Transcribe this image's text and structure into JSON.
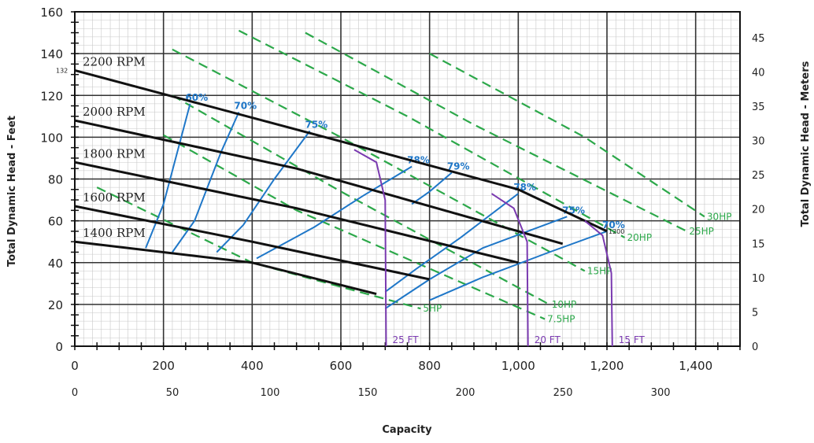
{
  "chart_data": {
    "type": "line",
    "title": "",
    "xlabel": "Capacity",
    "ylabel_left": "Total Dynamic Head - Feet",
    "ylabel_right": "Total Dynamic Head - Meters",
    "x_range": [
      0,
      1500
    ],
    "y_range": [
      0,
      160
    ],
    "x_ticks_top": [
      "0",
      "200",
      "400",
      "600",
      "800",
      "1,000",
      "1,200",
      "1,400"
    ],
    "x_ticks_top_values": [
      0,
      200,
      400,
      600,
      800,
      1000,
      1200,
      1400
    ],
    "x_ticks_bottom": [
      "0",
      "50",
      "100",
      "150",
      "200",
      "250",
      "300"
    ],
    "x_ticks_bottom_values": [
      0,
      50,
      100,
      150,
      200,
      250,
      300
    ],
    "y_ticks_left": [
      "0",
      "20",
      "40",
      "60",
      "80",
      "100",
      "120",
      "140",
      "160"
    ],
    "y_ticks_left_values": [
      0,
      20,
      40,
      60,
      80,
      100,
      120,
      140,
      160
    ],
    "y_ticks_right": [
      "0",
      "5",
      "10",
      "15",
      "20",
      "25",
      "30",
      "35",
      "40",
      "45"
    ],
    "y_ticks_right_values": [
      0,
      5,
      10,
      15,
      20,
      25,
      30,
      35,
      40,
      45
    ],
    "marker_labels": [
      {
        "text": "132",
        "x": 0,
        "y": 132
      },
      {
        "text": "1200",
        "x": 1200,
        "y": 55
      }
    ],
    "rpm_curves": [
      {
        "name": "2200 RPM",
        "points": [
          [
            0,
            132
          ],
          [
            600,
            98
          ],
          [
            1000,
            75
          ],
          [
            1200,
            55
          ]
        ]
      },
      {
        "name": "2000 RPM",
        "points": [
          [
            0,
            108
          ],
          [
            500,
            85
          ],
          [
            1100,
            49
          ]
        ]
      },
      {
        "name": "1800 RPM",
        "points": [
          [
            0,
            88
          ],
          [
            500,
            66
          ],
          [
            1000,
            40
          ]
        ]
      },
      {
        "name": "1600 RPM",
        "points": [
          [
            0,
            67
          ],
          [
            400,
            50
          ],
          [
            800,
            32
          ]
        ]
      },
      {
        "name": "1400 RPM",
        "points": [
          [
            0,
            50
          ],
          [
            400,
            40
          ],
          [
            680,
            25
          ]
        ]
      }
    ],
    "efficiency_curves": [
      {
        "name": "60%",
        "points": [
          [
            160,
            47
          ],
          [
            200,
            68
          ],
          [
            260,
            116
          ]
        ]
      },
      {
        "name": "70%",
        "points": [
          [
            220,
            45
          ],
          [
            270,
            60
          ],
          [
            330,
            93
          ],
          [
            370,
            112
          ]
        ]
      },
      {
        "name": "75%",
        "points": [
          [
            320,
            45
          ],
          [
            380,
            58
          ],
          [
            450,
            80
          ],
          [
            530,
            103
          ]
        ]
      },
      {
        "name": "78%",
        "points": [
          [
            410,
            42
          ],
          [
            540,
            57
          ],
          [
            650,
            72
          ],
          [
            760,
            86
          ]
        ]
      },
      {
        "name": "79%",
        "points": [
          [
            760,
            68
          ],
          [
            800,
            74
          ],
          [
            850,
            83
          ]
        ]
      },
      {
        "name": "78%",
        "points": [
          [
            700,
            26
          ],
          [
            770,
            37
          ],
          [
            870,
            52
          ],
          [
            1000,
            73
          ]
        ]
      },
      {
        "name": "75%",
        "points": [
          [
            700,
            18
          ],
          [
            800,
            32
          ],
          [
            920,
            47
          ],
          [
            1110,
            62
          ]
        ]
      },
      {
        "name": "70%",
        "points": [
          [
            800,
            22
          ],
          [
            920,
            33
          ],
          [
            1070,
            45
          ],
          [
            1200,
            55
          ]
        ]
      }
    ],
    "hp_curves": [
      {
        "name": "5HP",
        "points": [
          [
            50,
            76
          ],
          [
            400,
            40
          ],
          [
            780,
            18
          ]
        ]
      },
      {
        "name": "7.5HP",
        "points": [
          [
            200,
            101
          ],
          [
            500,
            65
          ],
          [
            1060,
            13
          ]
        ]
      },
      {
        "name": "10HP",
        "points": [
          [
            220,
            120
          ],
          [
            600,
            74
          ],
          [
            1070,
            20
          ]
        ]
      },
      {
        "name": "15HP",
        "points": [
          [
            220,
            142
          ],
          [
            600,
            100
          ],
          [
            1150,
            36
          ]
        ]
      },
      {
        "name": "20HP",
        "points": [
          [
            370,
            151
          ],
          [
            750,
            110
          ],
          [
            1240,
            52
          ]
        ]
      },
      {
        "name": "25HP",
        "points": [
          [
            520,
            150
          ],
          [
            900,
            106
          ],
          [
            1380,
            55
          ]
        ]
      },
      {
        "name": "30HP",
        "points": [
          [
            800,
            140
          ],
          [
            1150,
            100
          ],
          [
            1420,
            62
          ]
        ]
      }
    ],
    "npsh_curves": [
      {
        "name": "25 FT",
        "points": [
          [
            630,
            94
          ],
          [
            680,
            88
          ],
          [
            700,
            70
          ],
          [
            702,
            0
          ]
        ]
      },
      {
        "name": "20 FT",
        "points": [
          [
            940,
            73
          ],
          [
            990,
            66
          ],
          [
            1020,
            50
          ],
          [
            1022,
            0
          ]
        ]
      },
      {
        "name": "15 FT",
        "points": [
          [
            1150,
            60
          ],
          [
            1190,
            53
          ],
          [
            1210,
            35
          ],
          [
            1212,
            0
          ]
        ]
      }
    ],
    "colors": {
      "rpm": "#111111",
      "efficiency": "#1f77c8",
      "hp": "#2ca84a",
      "npsh": "#7a3ab0",
      "grid_major": "#333333",
      "grid_minor": "#c8c8c8"
    },
    "grid": true
  }
}
